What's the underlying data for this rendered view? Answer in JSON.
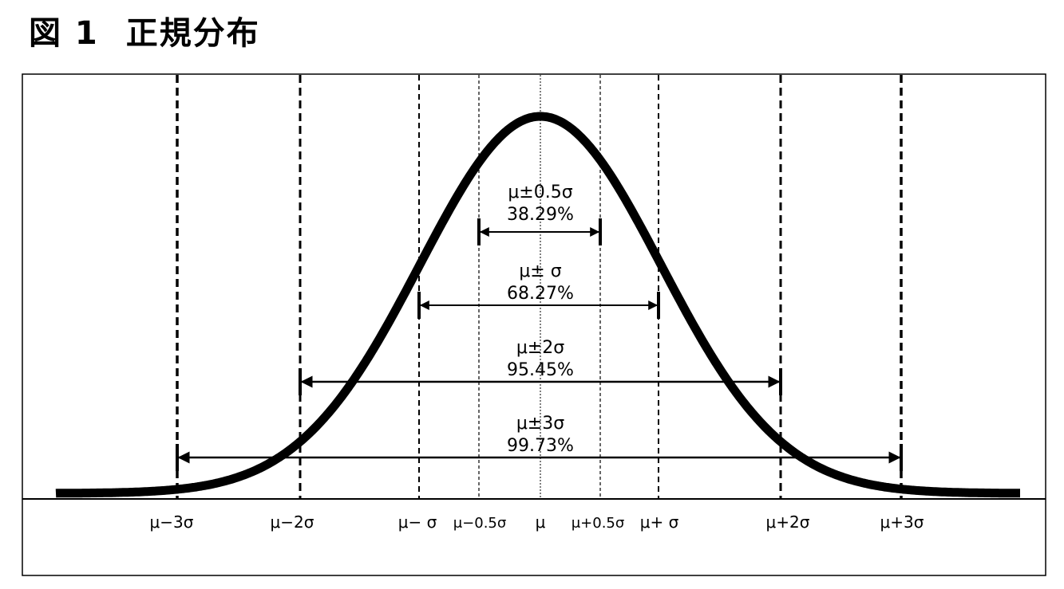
{
  "title": {
    "prefix": "図 1",
    "text": "正規分布"
  },
  "axis_labels": [
    {
      "id": "m3",
      "text": "μ−3σ"
    },
    {
      "id": "m2",
      "text": "μ−2σ"
    },
    {
      "id": "m1",
      "text": "μ− σ"
    },
    {
      "id": "m05",
      "text": "μ−0.5σ"
    },
    {
      "id": "mu",
      "text": "μ"
    },
    {
      "id": "p05",
      "text": "μ+0.5σ"
    },
    {
      "id": "p1",
      "text": "μ+ σ"
    },
    {
      "id": "p2",
      "text": "μ+2σ"
    },
    {
      "id": "p3",
      "text": "μ+3σ"
    }
  ],
  "ranges": [
    {
      "id": "half",
      "label": "μ±0.5σ",
      "percent": "38.29%",
      "k": 0.5
    },
    {
      "id": "one",
      "label": "μ± σ",
      "percent": "68.27%",
      "k": 1
    },
    {
      "id": "two",
      "label": "μ±2σ",
      "percent": "95.45%",
      "k": 2
    },
    {
      "id": "three",
      "label": "μ±3σ",
      "percent": "99.73%",
      "k": 3
    }
  ]
}
